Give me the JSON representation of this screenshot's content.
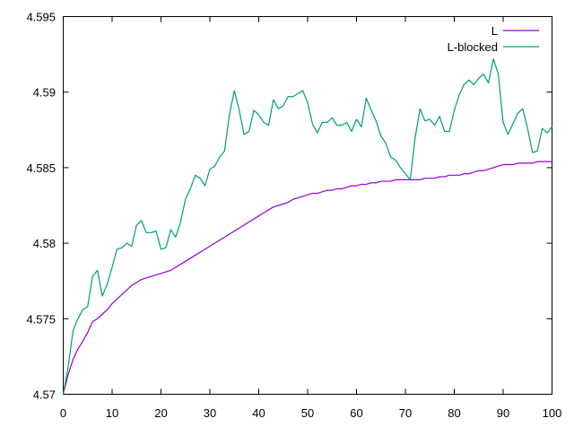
{
  "chart_data": {
    "type": "line",
    "title": "",
    "xlabel": "",
    "ylabel": "",
    "xlim": [
      0,
      100
    ],
    "ylim": [
      4.57,
      4.595
    ],
    "x_ticks": [
      "0",
      "10",
      "20",
      "30",
      "40",
      "50",
      "60",
      "70",
      "80",
      "90",
      "100"
    ],
    "y_ticks": [
      "4.57",
      "4.575",
      "4.58",
      "4.585",
      "4.59",
      "4.595"
    ],
    "grid": false,
    "legend_position": "top-right",
    "x": [
      0,
      1,
      2,
      3,
      4,
      5,
      6,
      7,
      8,
      9,
      10,
      11,
      12,
      13,
      14,
      15,
      16,
      17,
      18,
      19,
      20,
      21,
      22,
      23,
      24,
      25,
      26,
      27,
      28,
      29,
      30,
      31,
      32,
      33,
      34,
      35,
      36,
      37,
      38,
      39,
      40,
      41,
      42,
      43,
      44,
      45,
      46,
      47,
      48,
      49,
      50,
      51,
      52,
      53,
      54,
      55,
      56,
      57,
      58,
      59,
      60,
      61,
      62,
      63,
      64,
      65,
      66,
      67,
      68,
      69,
      70,
      71,
      72,
      73,
      74,
      75,
      76,
      77,
      78,
      79,
      80,
      81,
      82,
      83,
      84,
      85,
      86,
      87,
      88,
      89,
      90,
      91,
      92,
      93,
      94,
      95,
      96,
      97,
      98,
      99,
      100
    ],
    "series": [
      {
        "name": "L",
        "color": "#9400d3",
        "values": [
          4.57,
          4.5713,
          4.5723,
          4.573,
          4.5735,
          4.5741,
          4.5748,
          4.575,
          4.5753,
          4.5756,
          4.576,
          4.5763,
          4.5766,
          4.5769,
          4.5772,
          4.5774,
          4.5776,
          4.5777,
          4.5778,
          4.5779,
          4.578,
          4.5781,
          4.5782,
          4.5784,
          4.5786,
          4.5788,
          4.579,
          4.5792,
          4.5794,
          4.5796,
          4.5798,
          4.58,
          4.5802,
          4.5804,
          4.5806,
          4.5808,
          4.581,
          4.5812,
          4.5814,
          4.5816,
          4.5818,
          4.582,
          4.5822,
          4.5824,
          4.5825,
          4.5826,
          4.5827,
          4.5829,
          4.583,
          4.5831,
          4.5832,
          4.5833,
          4.5833,
          4.5834,
          4.5835,
          4.5835,
          4.5836,
          4.5836,
          4.5837,
          4.5838,
          4.5838,
          4.5839,
          4.5839,
          4.584,
          4.584,
          4.5841,
          4.5841,
          4.5841,
          4.5842,
          4.5842,
          4.5842,
          4.5842,
          4.5842,
          4.5842,
          4.5843,
          4.5843,
          4.5843,
          4.5844,
          4.5844,
          4.5845,
          4.5845,
          4.5845,
          4.5846,
          4.5846,
          4.5847,
          4.5848,
          4.5848,
          4.5849,
          4.585,
          4.5851,
          4.5852,
          4.5852,
          4.5852,
          4.5853,
          4.5853,
          4.5853,
          4.5853,
          4.5854,
          4.5854,
          4.5854,
          4.5854
        ]
      },
      {
        "name": "L-blocked",
        "color": "#009e73",
        "values": [
          4.57,
          4.5718,
          4.5742,
          4.575,
          4.5756,
          4.5758,
          4.5778,
          4.5782,
          4.5765,
          4.5773,
          4.5784,
          4.5796,
          4.5797,
          4.58,
          4.5798,
          4.5812,
          4.5815,
          4.5807,
          4.5807,
          4.5808,
          4.5796,
          4.5797,
          4.5809,
          4.5804,
          4.5814,
          4.5829,
          4.5836,
          4.5845,
          4.5843,
          4.5838,
          4.5849,
          4.5851,
          4.5857,
          4.5861,
          4.5885,
          4.5901,
          4.5888,
          4.5872,
          4.5874,
          4.5888,
          4.5885,
          4.588,
          4.5878,
          4.5895,
          4.5889,
          4.5891,
          4.5897,
          4.5897,
          4.5899,
          4.5901,
          4.5893,
          4.5879,
          4.5873,
          4.588,
          4.588,
          4.5883,
          4.5878,
          4.5878,
          4.588,
          4.5874,
          4.5882,
          4.5877,
          4.5896,
          4.5888,
          4.5881,
          4.5871,
          4.5866,
          4.5857,
          4.5855,
          4.585,
          4.5846,
          4.5842,
          4.587,
          4.5889,
          4.5881,
          4.5882,
          4.5878,
          4.5884,
          4.5874,
          4.5874,
          4.5888,
          4.5898,
          4.5905,
          4.5908,
          4.5905,
          4.5909,
          4.5912,
          4.5906,
          4.5922,
          4.5912,
          4.588,
          4.5872,
          4.5879,
          4.5886,
          4.5889,
          4.5876,
          4.586,
          4.5861,
          4.5876,
          4.5873,
          4.5877
        ]
      }
    ]
  }
}
